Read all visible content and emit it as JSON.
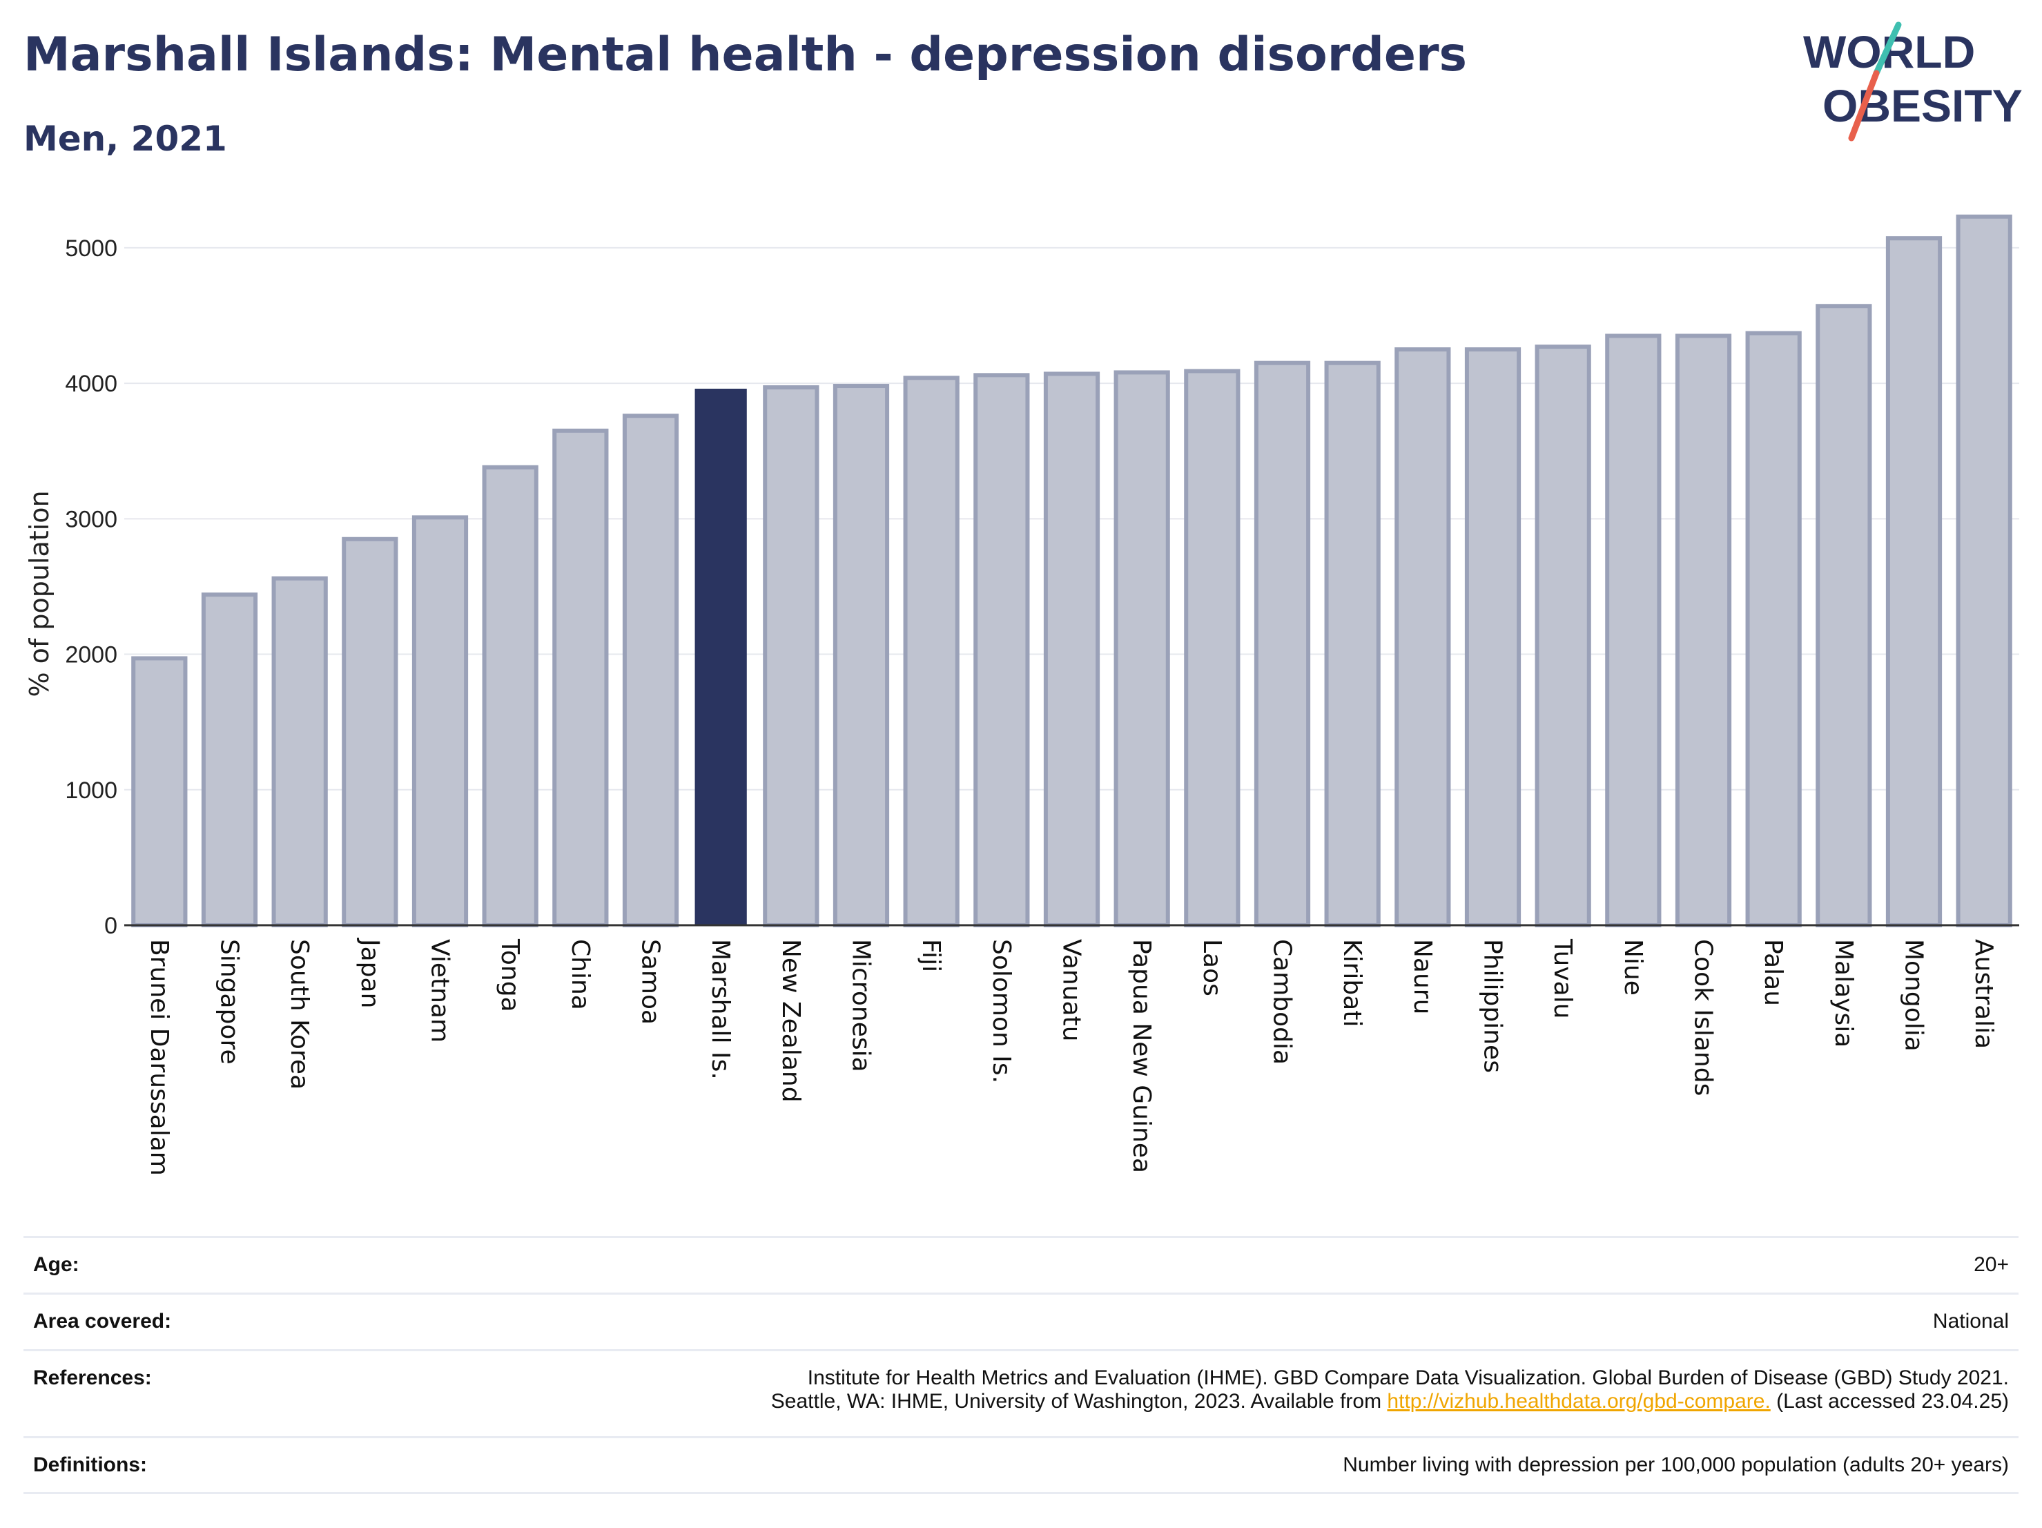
{
  "header": {
    "title": "Marshall Islands: Mental health - depression disorders",
    "subtitle": "Men, 2021"
  },
  "logo": {
    "line1": "WORLD",
    "line2": "OBESITY",
    "colors": {
      "text": "#2a3460",
      "slash_top": "#3fbfb0",
      "slash_bottom": "#e8604c"
    }
  },
  "colors": {
    "bar_default": "#bfc3d0",
    "bar_border": "#9aa1b8",
    "bar_highlight": "#2a3460",
    "grid": "#e6e8ee",
    "axis": "#333333"
  },
  "chart_data": {
    "type": "bar",
    "ylabel": "% of population",
    "xlabel": "",
    "ylim": [
      0,
      5300
    ],
    "yticks": [
      0,
      1000,
      2000,
      3000,
      4000,
      5000
    ],
    "grid": true,
    "highlight": "Marshall Is.",
    "categories": [
      "Brunei Darussalam",
      "Singapore",
      "South Korea",
      "Japan",
      "Vietnam",
      "Tonga",
      "China",
      "Samoa",
      "Marshall Is.",
      "New Zealand",
      "Micronesia",
      "Fiji",
      "Solomon Is.",
      "Vanuatu",
      "Papua New Guinea",
      "Laos",
      "Cambodia",
      "Kiribati",
      "Nauru",
      "Philippines",
      "Tuvalu",
      "Niue",
      "Cook Islands",
      "Palau",
      "Malaysia",
      "Mongolia",
      "Australia"
    ],
    "values": [
      1970,
      2440,
      2560,
      2850,
      3010,
      3380,
      3650,
      3760,
      3960,
      3970,
      3980,
      4040,
      4060,
      4070,
      4080,
      4090,
      4150,
      4150,
      4250,
      4250,
      4270,
      4350,
      4350,
      4370,
      4570,
      5070,
      5230
    ]
  },
  "meta": {
    "age_label": "Age:",
    "age_value": "20+",
    "area_label": "Area covered:",
    "area_value": "National",
    "references_label": "References:",
    "references_line1": "Institute for Health Metrics and Evaluation (IHME). GBD Compare Data Visualization. Global Burden of Disease (GBD) Study 2021.",
    "references_line2_pre": "Seattle, WA: IHME, University of Washington, 2023. Available from",
    "references_link": "http://vizhub.healthdata.org/gbd-compare.",
    "references_line2_post": "(Last accessed 23.04.25)",
    "definitions_label": "Definitions:",
    "definitions_value": "Number living with depression per 100,000 population (adults 20+ years)"
  }
}
